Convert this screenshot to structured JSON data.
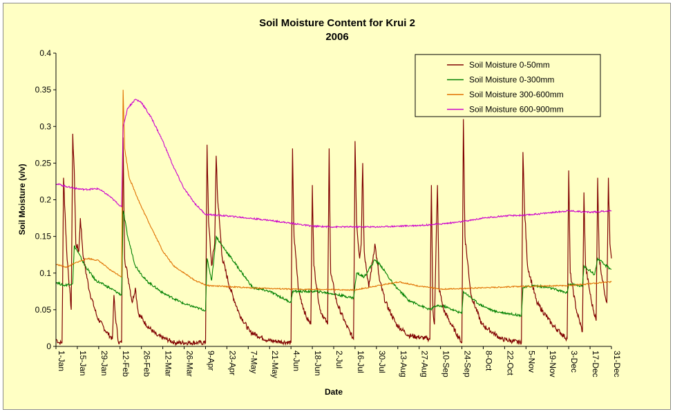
{
  "chart_data": {
    "type": "line",
    "title": "Soil Moisture Content for Krui 2",
    "subtitle": "2006",
    "xlabel": "Date",
    "ylabel": "Soil Moisture (v/v)",
    "ylim": [
      0,
      0.4
    ],
    "yticks": [
      "0",
      "0.05",
      "0.1",
      "0.15",
      "0.2",
      "0.25",
      "0.3",
      "0.35",
      "0.4"
    ],
    "xlim": [
      "2006-01-01",
      "2006-12-31"
    ],
    "xticks": [
      {
        "date": "2006-01-01",
        "label": "1-Jan"
      },
      {
        "date": "2006-01-15",
        "label": "15-Jan"
      },
      {
        "date": "2006-01-29",
        "label": "29-Jan"
      },
      {
        "date": "2006-02-12",
        "label": "12-Feb"
      },
      {
        "date": "2006-02-26",
        "label": "26-Feb"
      },
      {
        "date": "2006-03-12",
        "label": "12-Mar"
      },
      {
        "date": "2006-03-26",
        "label": "26-Mar"
      },
      {
        "date": "2006-04-09",
        "label": "9-Apr"
      },
      {
        "date": "2006-04-23",
        "label": "23-Apr"
      },
      {
        "date": "2006-05-07",
        "label": "7-May"
      },
      {
        "date": "2006-05-21",
        "label": "21-May"
      },
      {
        "date": "2006-06-04",
        "label": "4-Jun"
      },
      {
        "date": "2006-06-18",
        "label": "18-Jun"
      },
      {
        "date": "2006-07-02",
        "label": "2-Jul"
      },
      {
        "date": "2006-07-16",
        "label": "16-Jul"
      },
      {
        "date": "2006-07-30",
        "label": "30-Jul"
      },
      {
        "date": "2006-08-13",
        "label": "13-Aug"
      },
      {
        "date": "2006-08-27",
        "label": "27-Aug"
      },
      {
        "date": "2006-09-10",
        "label": "10-Sep"
      },
      {
        "date": "2006-09-24",
        "label": "24-Sep"
      },
      {
        "date": "2006-10-08",
        "label": "8-Oct"
      },
      {
        "date": "2006-10-22",
        "label": "22-Oct"
      },
      {
        "date": "2006-11-05",
        "label": "5-Nov"
      },
      {
        "date": "2006-11-19",
        "label": "19-Nov"
      },
      {
        "date": "2006-12-03",
        "label": "3-Dec"
      },
      {
        "date": "2006-12-17",
        "label": "17-Dec"
      },
      {
        "date": "2006-12-31",
        "label": "31-Dec"
      }
    ],
    "grid": false,
    "legend_position": "top-right",
    "series": [
      {
        "name": "Soil Moisture 0-50mm",
        "color": "#800000",
        "points": [
          [
            "2006-01-01",
            0.01
          ],
          [
            "2006-01-03",
            0.005
          ],
          [
            "2006-01-05",
            0.005
          ],
          [
            "2006-01-06",
            0.23
          ],
          [
            "2006-01-08",
            0.13
          ],
          [
            "2006-01-11",
            0.05
          ],
          [
            "2006-01-12",
            0.29
          ],
          [
            "2006-01-13",
            0.24
          ],
          [
            "2006-01-14",
            0.14
          ],
          [
            "2006-01-16",
            0.13
          ],
          [
            "2006-01-17",
            0.175
          ],
          [
            "2006-01-19",
            0.12
          ],
          [
            "2006-01-23",
            0.075
          ],
          [
            "2006-01-28",
            0.04
          ],
          [
            "2006-02-03",
            0.02
          ],
          [
            "2006-02-07",
            0.01
          ],
          [
            "2006-02-08",
            0.07
          ],
          [
            "2006-02-09",
            0.04
          ],
          [
            "2006-02-11",
            0.005
          ],
          [
            "2006-02-13",
            0.005
          ],
          [
            "2006-02-14",
            0.285
          ],
          [
            "2006-02-15",
            0.12
          ],
          [
            "2006-02-18",
            0.085
          ],
          [
            "2006-02-20",
            0.06
          ],
          [
            "2006-02-22",
            0.08
          ],
          [
            "2006-02-24",
            0.045
          ],
          [
            "2006-03-01",
            0.03
          ],
          [
            "2006-03-08",
            0.015
          ],
          [
            "2006-03-20",
            0.005
          ],
          [
            "2006-04-09",
            0.005
          ],
          [
            "2006-04-10",
            0.275
          ],
          [
            "2006-04-11",
            0.17
          ],
          [
            "2006-04-13",
            0.11
          ],
          [
            "2006-04-15",
            0.14
          ],
          [
            "2006-04-16",
            0.26
          ],
          [
            "2006-04-17",
            0.2
          ],
          [
            "2006-04-20",
            0.12
          ],
          [
            "2006-04-25",
            0.08
          ],
          [
            "2006-05-01",
            0.045
          ],
          [
            "2006-05-08",
            0.02
          ],
          [
            "2006-05-20",
            0.008
          ],
          [
            "2006-06-04",
            0.005
          ],
          [
            "2006-06-05",
            0.27
          ],
          [
            "2006-06-06",
            0.15
          ],
          [
            "2006-06-09",
            0.075
          ],
          [
            "2006-06-14",
            0.04
          ],
          [
            "2006-06-17",
            0.03
          ],
          [
            "2006-06-18",
            0.22
          ],
          [
            "2006-06-19",
            0.11
          ],
          [
            "2006-06-23",
            0.05
          ],
          [
            "2006-06-28",
            0.03
          ],
          [
            "2006-06-29",
            0.27
          ],
          [
            "2006-06-30",
            0.1
          ],
          [
            "2006-07-04",
            0.06
          ],
          [
            "2006-07-10",
            0.03
          ],
          [
            "2006-07-15",
            0.01
          ],
          [
            "2006-07-16",
            0.28
          ],
          [
            "2006-07-17",
            0.17
          ],
          [
            "2006-07-19",
            0.12
          ],
          [
            "2006-07-20",
            0.14
          ],
          [
            "2006-07-21",
            0.25
          ],
          [
            "2006-07-22",
            0.13
          ],
          [
            "2006-07-25",
            0.08
          ],
          [
            "2006-07-29",
            0.14
          ],
          [
            "2006-08-01",
            0.09
          ],
          [
            "2006-08-05",
            0.06
          ],
          [
            "2006-08-12",
            0.03
          ],
          [
            "2006-08-20",
            0.015
          ],
          [
            "2006-09-03",
            0.01
          ],
          [
            "2006-09-04",
            0.22
          ],
          [
            "2006-09-05",
            0.05
          ],
          [
            "2006-09-06",
            0.03
          ],
          [
            "2006-09-07",
            0.13
          ],
          [
            "2006-09-08",
            0.22
          ],
          [
            "2006-09-09",
            0.08
          ],
          [
            "2006-09-12",
            0.05
          ],
          [
            "2006-09-17",
            0.03
          ],
          [
            "2006-09-24",
            0.005
          ],
          [
            "2006-09-25",
            0.31
          ],
          [
            "2006-09-26",
            0.15
          ],
          [
            "2006-09-30",
            0.07
          ],
          [
            "2006-10-07",
            0.03
          ],
          [
            "2006-10-20",
            0.01
          ],
          [
            "2006-11-02",
            0.005
          ],
          [
            "2006-11-03",
            0.265
          ],
          [
            "2006-11-04",
            0.19
          ],
          [
            "2006-11-06",
            0.11
          ],
          [
            "2006-11-12",
            0.06
          ],
          [
            "2006-11-22",
            0.03
          ],
          [
            "2006-12-02",
            0.01
          ],
          [
            "2006-12-03",
            0.24
          ],
          [
            "2006-12-04",
            0.1
          ],
          [
            "2006-12-08",
            0.05
          ],
          [
            "2006-12-12",
            0.02
          ],
          [
            "2006-12-13",
            0.21
          ],
          [
            "2006-12-14",
            0.11
          ],
          [
            "2006-12-18",
            0.06
          ],
          [
            "2006-12-21",
            0.035
          ],
          [
            "2006-12-22",
            0.23
          ],
          [
            "2006-12-23",
            0.12
          ],
          [
            "2006-12-26",
            0.08
          ],
          [
            "2006-12-28",
            0.06
          ],
          [
            "2006-12-29",
            0.23
          ],
          [
            "2006-12-30",
            0.14
          ],
          [
            "2006-12-31",
            0.12
          ]
        ]
      },
      {
        "name": "Soil Moisture 0-300mm",
        "color": "#008000",
        "points": [
          [
            "2006-01-01",
            0.088
          ],
          [
            "2006-01-06",
            0.083
          ],
          [
            "2006-01-12",
            0.086
          ],
          [
            "2006-01-13",
            0.137
          ],
          [
            "2006-01-15",
            0.13
          ],
          [
            "2006-01-20",
            0.11
          ],
          [
            "2006-01-27",
            0.09
          ],
          [
            "2006-02-05",
            0.08
          ],
          [
            "2006-02-13",
            0.07
          ],
          [
            "2006-02-14",
            0.185
          ],
          [
            "2006-02-17",
            0.15
          ],
          [
            "2006-02-22",
            0.11
          ],
          [
            "2006-03-01",
            0.09
          ],
          [
            "2006-03-12",
            0.073
          ],
          [
            "2006-03-26",
            0.058
          ],
          [
            "2006-04-09",
            0.049
          ],
          [
            "2006-04-10",
            0.12
          ],
          [
            "2006-04-13",
            0.09
          ],
          [
            "2006-04-16",
            0.15
          ],
          [
            "2006-04-19",
            0.14
          ],
          [
            "2006-04-26",
            0.12
          ],
          [
            "2006-05-03",
            0.1
          ],
          [
            "2006-05-10",
            0.08
          ],
          [
            "2006-05-21",
            0.075
          ],
          [
            "2006-06-04",
            0.06
          ],
          [
            "2006-06-05",
            0.075
          ],
          [
            "2006-06-21",
            0.075
          ],
          [
            "2006-07-01",
            0.072
          ],
          [
            "2006-07-15",
            0.066
          ],
          [
            "2006-07-17",
            0.1
          ],
          [
            "2006-07-22",
            0.095
          ],
          [
            "2006-07-29",
            0.118
          ],
          [
            "2006-08-02",
            0.11
          ],
          [
            "2006-08-10",
            0.085
          ],
          [
            "2006-08-20",
            0.063
          ],
          [
            "2006-09-03",
            0.05
          ],
          [
            "2006-09-07",
            0.055
          ],
          [
            "2006-09-12",
            0.055
          ],
          [
            "2006-09-24",
            0.045
          ],
          [
            "2006-09-25",
            0.075
          ],
          [
            "2006-10-05",
            0.058
          ],
          [
            "2006-10-15",
            0.048
          ],
          [
            "2006-11-02",
            0.042
          ],
          [
            "2006-11-03",
            0.08
          ],
          [
            "2006-11-10",
            0.083
          ],
          [
            "2006-11-20",
            0.08
          ],
          [
            "2006-12-02",
            0.073
          ],
          [
            "2006-12-03",
            0.085
          ],
          [
            "2006-12-12",
            0.082
          ],
          [
            "2006-12-13",
            0.11
          ],
          [
            "2006-12-20",
            0.098
          ],
          [
            "2006-12-22",
            0.12
          ],
          [
            "2006-12-26",
            0.112
          ],
          [
            "2006-12-31",
            0.105
          ]
        ]
      },
      {
        "name": "Soil Moisture 300-600mm",
        "color": "#e07000",
        "points": [
          [
            "2006-01-01",
            0.112
          ],
          [
            "2006-01-08",
            0.108
          ],
          [
            "2006-01-15",
            0.115
          ],
          [
            "2006-01-22",
            0.12
          ],
          [
            "2006-01-29",
            0.117
          ],
          [
            "2006-02-05",
            0.105
          ],
          [
            "2006-02-13",
            0.095
          ],
          [
            "2006-02-14",
            0.35
          ],
          [
            "2006-02-15",
            0.27
          ],
          [
            "2006-02-18",
            0.23
          ],
          [
            "2006-02-26",
            0.19
          ],
          [
            "2006-03-05",
            0.16
          ],
          [
            "2006-03-12",
            0.13
          ],
          [
            "2006-03-19",
            0.11
          ],
          [
            "2006-03-26",
            0.1
          ],
          [
            "2006-04-02",
            0.09
          ],
          [
            "2006-04-10",
            0.083
          ],
          [
            "2006-05-07",
            0.08
          ],
          [
            "2006-06-04",
            0.078
          ],
          [
            "2006-07-16",
            0.077
          ],
          [
            "2006-08-06",
            0.085
          ],
          [
            "2006-08-14",
            0.088
          ],
          [
            "2006-08-25",
            0.083
          ],
          [
            "2006-09-10",
            0.078
          ],
          [
            "2006-10-08",
            0.08
          ],
          [
            "2006-11-05",
            0.082
          ],
          [
            "2006-12-03",
            0.083
          ],
          [
            "2006-12-31",
            0.088
          ]
        ]
      },
      {
        "name": "Soil Moisture 600-900mm",
        "color": "#cc00cc",
        "points": [
          [
            "2006-01-01",
            0.222
          ],
          [
            "2006-01-08",
            0.218
          ],
          [
            "2006-01-15",
            0.215
          ],
          [
            "2006-01-20",
            0.214
          ],
          [
            "2006-01-29",
            0.215
          ],
          [
            "2006-02-05",
            0.205
          ],
          [
            "2006-02-13",
            0.19
          ],
          [
            "2006-02-14",
            0.3
          ],
          [
            "2006-02-17",
            0.325
          ],
          [
            "2006-02-22",
            0.337
          ],
          [
            "2006-02-26",
            0.333
          ],
          [
            "2006-03-05",
            0.31
          ],
          [
            "2006-03-12",
            0.28
          ],
          [
            "2006-03-19",
            0.245
          ],
          [
            "2006-03-26",
            0.215
          ],
          [
            "2006-04-02",
            0.195
          ],
          [
            "2006-04-09",
            0.18
          ],
          [
            "2006-04-23",
            0.178
          ],
          [
            "2006-05-07",
            0.175
          ],
          [
            "2006-05-21",
            0.172
          ],
          [
            "2006-06-04",
            0.168
          ],
          [
            "2006-06-18",
            0.164
          ],
          [
            "2006-07-02",
            0.163
          ],
          [
            "2006-07-30",
            0.163
          ],
          [
            "2006-08-27",
            0.165
          ],
          [
            "2006-09-10",
            0.167
          ],
          [
            "2006-09-24",
            0.17
          ],
          [
            "2006-10-08",
            0.175
          ],
          [
            "2006-10-22",
            0.178
          ],
          [
            "2006-11-05",
            0.179
          ],
          [
            "2006-11-19",
            0.182
          ],
          [
            "2006-12-03",
            0.185
          ],
          [
            "2006-12-17",
            0.183
          ],
          [
            "2006-12-31",
            0.185
          ]
        ]
      }
    ]
  }
}
